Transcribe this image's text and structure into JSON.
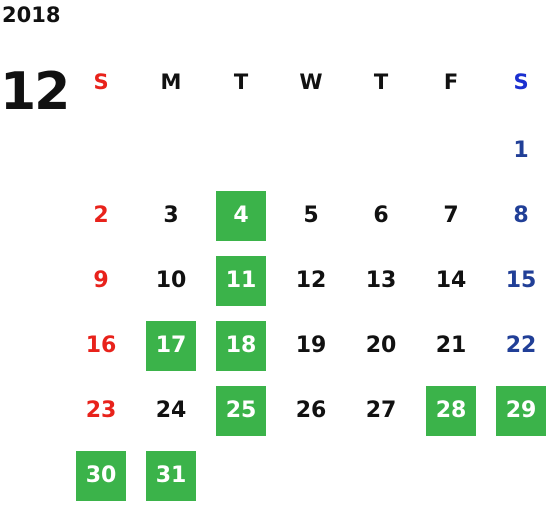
{
  "calendar": {
    "year": "2018",
    "month": "12",
    "highlight_color": "#3bb34a",
    "sunday_color": "#e8221b",
    "saturday_color": "#213f97",
    "weekdays": [
      "S",
      "M",
      "T",
      "W",
      "T",
      "F",
      "S"
    ],
    "leading_blanks": 6,
    "days": [
      {
        "label": "1",
        "highlighted": false
      },
      {
        "label": "2",
        "highlighted": false
      },
      {
        "label": "3",
        "highlighted": false
      },
      {
        "label": "4",
        "highlighted": true
      },
      {
        "label": "5",
        "highlighted": false
      },
      {
        "label": "6",
        "highlighted": false
      },
      {
        "label": "7",
        "highlighted": false
      },
      {
        "label": "8",
        "highlighted": false
      },
      {
        "label": "9",
        "highlighted": false
      },
      {
        "label": "10",
        "highlighted": false
      },
      {
        "label": "11",
        "highlighted": true
      },
      {
        "label": "12",
        "highlighted": false
      },
      {
        "label": "13",
        "highlighted": false
      },
      {
        "label": "14",
        "highlighted": false
      },
      {
        "label": "15",
        "highlighted": false
      },
      {
        "label": "16",
        "highlighted": false
      },
      {
        "label": "17",
        "highlighted": true
      },
      {
        "label": "18",
        "highlighted": true
      },
      {
        "label": "19",
        "highlighted": false
      },
      {
        "label": "20",
        "highlighted": false
      },
      {
        "label": "21",
        "highlighted": false
      },
      {
        "label": "22",
        "highlighted": false
      },
      {
        "label": "23",
        "highlighted": false
      },
      {
        "label": "24",
        "highlighted": false
      },
      {
        "label": "25",
        "highlighted": true
      },
      {
        "label": "26",
        "highlighted": false
      },
      {
        "label": "27",
        "highlighted": false
      },
      {
        "label": "28",
        "highlighted": true
      },
      {
        "label": "29",
        "highlighted": true
      },
      {
        "label": "30",
        "highlighted": true
      },
      {
        "label": "31",
        "highlighted": true
      }
    ]
  }
}
